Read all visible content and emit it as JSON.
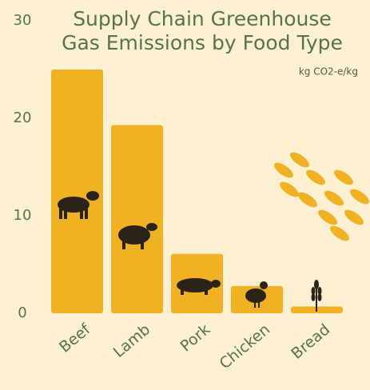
{
  "chart_data": {
    "type": "bar",
    "title": [
      "Supply Chain Greenhouse",
      "Gas Emissions by Food Type"
    ],
    "subtitle": "kg CO2-e/kg",
    "categories": [
      "Beef",
      "Lamb",
      "Pork",
      "Chicken",
      "Bread"
    ],
    "values": [
      25,
      19.3,
      6.1,
      2.8,
      0.7
    ],
    "color": "#f0b223",
    "ylim": [
      0,
      30
    ],
    "yticks": [
      0,
      10,
      20,
      30
    ],
    "grid": false
  }
}
